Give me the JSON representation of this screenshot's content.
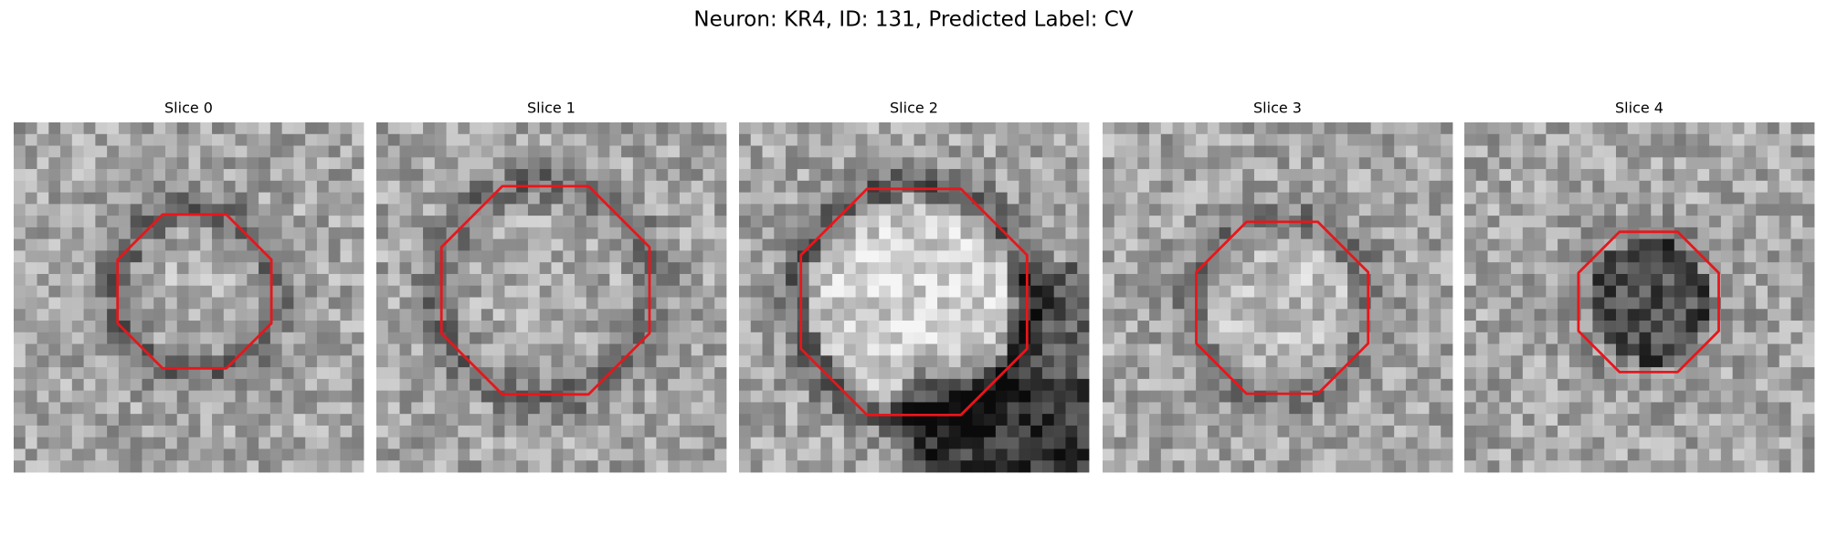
{
  "title": "Neuron: KR4, ID: 131, Predicted Label: CV",
  "panels": [
    {
      "title": "Slice 0"
    },
    {
      "title": "Slice 1"
    },
    {
      "title": "Slice 2"
    },
    {
      "title": "Slice 3"
    },
    {
      "title": "Slice 4"
    }
  ]
}
